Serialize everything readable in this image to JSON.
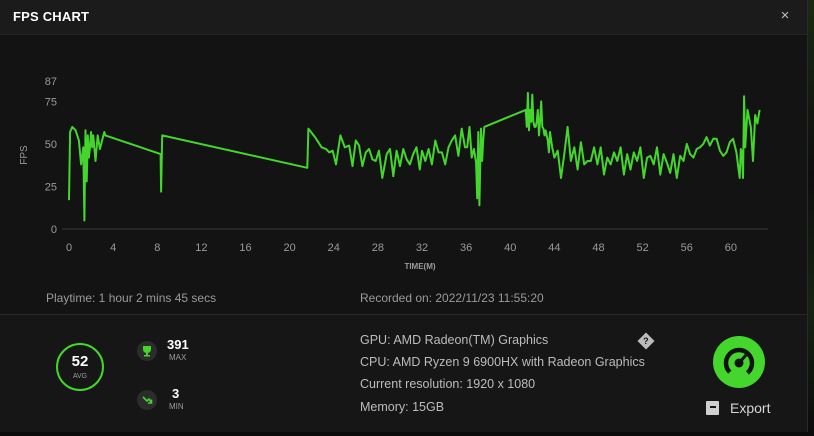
{
  "dialog": {
    "title": "FPS CHART"
  },
  "chart_data": {
    "type": "line",
    "title": "FPS CHART",
    "xlabel": "TIME(M)",
    "ylabel": "FPS",
    "xlim": [
      0,
      63
    ],
    "ylim": [
      0,
      87
    ],
    "x_ticks": [
      0,
      4,
      8,
      12,
      16,
      20,
      24,
      28,
      32,
      36,
      40,
      44,
      48,
      52,
      56,
      60
    ],
    "y_ticks": [
      0,
      25,
      50,
      75,
      87
    ],
    "line_color": "#44d62c",
    "grid": false,
    "series": [
      {
        "x": [
          0,
          0.1,
          0.3,
          0.6,
          0.9,
          1.1,
          1.2,
          1.3,
          1.4,
          1.5,
          1.6,
          1.7,
          1.8,
          1.9,
          2.0,
          2.1,
          2.2,
          2.4,
          2.6,
          2.8,
          3.0,
          3.2,
          3.3,
          8.3,
          8.35,
          8.45,
          21.6,
          21.7,
          22.3,
          22.6,
          22.9,
          23.3,
          23.6,
          23.9,
          24.2,
          24.6,
          25.0,
          25.4,
          25.7,
          26.0,
          26.3,
          26.6,
          26.9,
          27.2,
          27.5,
          27.8,
          28.1,
          28.4,
          28.8,
          29.1,
          29.4,
          29.7,
          30.0,
          30.3,
          30.6,
          30.9,
          31.2,
          31.5,
          31.8,
          32.0,
          32.3,
          32.6,
          32.9,
          33.2,
          33.5,
          33.8,
          34.1,
          34.4,
          34.7,
          35.0,
          35.3,
          35.6,
          35.9,
          36.1,
          36.3,
          36.5,
          36.7,
          36.9,
          37.0,
          37.1,
          37.2,
          37.35,
          37.45,
          37.55,
          37.65,
          41.4,
          41.5,
          41.6,
          41.7,
          41.8,
          41.9,
          42.0,
          42.1,
          42.2,
          42.3,
          42.4,
          42.5,
          42.6,
          42.7,
          42.8,
          42.9,
          43.0,
          43.1,
          43.2,
          43.3,
          43.4,
          43.5,
          43.6,
          43.8,
          44.0,
          44.3,
          44.6,
          44.9,
          45.2,
          45.5,
          45.8,
          46.1,
          46.4,
          46.7,
          47.0,
          47.3,
          47.6,
          47.9,
          48.2,
          48.5,
          48.8,
          49.1,
          49.4,
          49.7,
          50.0,
          50.3,
          50.6,
          50.9,
          51.2,
          51.5,
          51.8,
          52.1,
          52.4,
          52.7,
          53.0,
          53.3,
          53.6,
          53.9,
          54.2,
          54.5,
          54.8,
          55.1,
          55.4,
          55.7,
          56.0,
          56.3,
          56.6,
          56.9,
          57.2,
          57.5,
          57.8,
          58.1,
          58.4,
          58.7,
          59.0,
          59.3,
          59.6,
          59.9,
          60.2,
          60.5,
          60.8,
          60.9,
          61.0,
          61.1,
          61.2,
          61.3,
          61.5,
          61.8,
          62.0,
          62.2,
          62.4,
          62.6
        ],
        "y": [
          17,
          57,
          60,
          58,
          52,
          38,
          43,
          48,
          5,
          58,
          28,
          55,
          42,
          48,
          57,
          48,
          55,
          40,
          55,
          47,
          52,
          57,
          55,
          44,
          22,
          55,
          36,
          59,
          54,
          51,
          48,
          47,
          45,
          46,
          38,
          55,
          48,
          49,
          37,
          52,
          49,
          37,
          45,
          47,
          41,
          40,
          46,
          30,
          44,
          47,
          31,
          46,
          37,
          47,
          41,
          38,
          44,
          48,
          35,
          46,
          40,
          47,
          38,
          52,
          45,
          45,
          38,
          48,
          52,
          55,
          43,
          59,
          48,
          48,
          60,
          42,
          47,
          39,
          18,
          57,
          14,
          59,
          40,
          52,
          60,
          70,
          60,
          80,
          58,
          70,
          63,
          79,
          63,
          60,
          60,
          63,
          70,
          55,
          64,
          75,
          60,
          59,
          55,
          58,
          55,
          52,
          45,
          57,
          48,
          42,
          46,
          30,
          44,
          60,
          40,
          48,
          35,
          51,
          38,
          40,
          40,
          48,
          38,
          48,
          32,
          42,
          38,
          45,
          40,
          48,
          32,
          44,
          35,
          45,
          40,
          48,
          30,
          42,
          43,
          38,
          48,
          32,
          44,
          39,
          33,
          44,
          30,
          43,
          40,
          50,
          44,
          42,
          47,
          48,
          50,
          54,
          49,
          53,
          53,
          46,
          43,
          45,
          51,
          53,
          45,
          30,
          47,
          45,
          30,
          78,
          48,
          70,
          60,
          40,
          67,
          62,
          70
        ]
      }
    ]
  },
  "session": {
    "playtime": "Playtime: 1 hour 2 mins 45 secs",
    "recorded": "Recorded on: 2022/11/23 11:55:20"
  },
  "stats": {
    "avg_value": "52",
    "avg_label": "AVG",
    "max_value": "391",
    "max_label": "MAX",
    "min_value": "3",
    "min_label": "MIN"
  },
  "system": {
    "gpu": "GPU: AMD Radeon(TM) Graphics",
    "cpu": "CPU: AMD Ryzen 9 6900HX with Radeon Graphics",
    "resolution": "Current resolution: 1920 x 1080",
    "memory": "Memory: 15GB",
    "help_icon": "?"
  },
  "actions": {
    "export_label": "Export"
  },
  "icons": {
    "close": "×"
  },
  "colors": {
    "accent": "#44d62c",
    "panel": "#161616",
    "chart_bg": "#131313"
  }
}
